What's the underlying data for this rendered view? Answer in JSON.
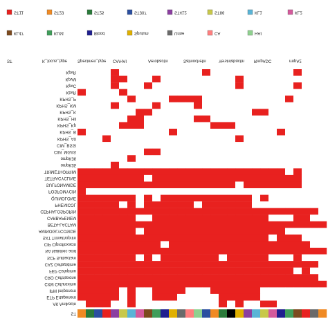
{
  "chart_data": {
    "type": "heatmap",
    "color": "#e8211f",
    "annotation_titles": [
      "ST",
      "K_locus_type",
      "Specimen_type",
      "CA/HAI",
      "Aerobactin",
      "Salmochelin",
      "Yersiniabactin",
      "RmpADC",
      "rmpA2"
    ],
    "legend": [
      {
        "name": "ST11",
        "color": "#e8211f"
      },
      {
        "name": "ST23",
        "color": "#f08a24"
      },
      {
        "name": "ST25",
        "color": "#2a7a3a"
      },
      {
        "name": "ST307",
        "color": "#2b4fa0"
      },
      {
        "name": "ST412",
        "color": "#8b3fa0"
      },
      {
        "name": "ST86",
        "color": "#c8c84a"
      },
      {
        "name": "KL1",
        "color": "#5ab4d6"
      },
      {
        "name": "KL2",
        "color": "#d45a9c"
      },
      {
        "name": "KL47",
        "color": "#7c4a1e"
      },
      {
        "name": "KL64",
        "color": "#3f9e5a"
      },
      {
        "name": "Blood",
        "color": "#1f1f8f"
      },
      {
        "name": "Sputum",
        "color": "#e0b000"
      },
      {
        "name": "Urine",
        "color": "#6a6a6a"
      },
      {
        "name": "CA",
        "color": "#ff7f7f"
      },
      {
        "name": "HAI",
        "color": "#8fd18f"
      }
    ],
    "rows": [
      "KpvR",
      "KpvM",
      "KpvC",
      "KbvR",
      "KPHS_P",
      "KPHS_KM",
      "KPHS_K",
      "KPHS_Hil",
      "KPHS_Kp",
      "KPHS_B",
      "KPHS_A0",
      "CIM_BSSI",
      "CIM_MGAS",
      "ompK36",
      "ompK35",
      "TRIMETHOPRIM",
      "TETRACYCLINE",
      "SULFONAMIDE",
      "FOSFOMYCIN",
      "QUINOLONE",
      "PHENICOL",
      "CEPHALOSPORIN",
      "CARBAPENEM",
      "BETA-LACTAM",
      "AMINOGLYCOSIDE",
      "SXT Trimethoprim",
      "CIP Ciprofloxacin",
      "NA Nalidixic acid",
      "SCF Sulbactam",
      "CAZ Ceftazidime",
      "FEP Cefepime",
      "CRO Ceftriaxone",
      "CXM Cefuroxime",
      "IPM Imipenem",
      "ETP Ertapenem",
      "AK Amikacin"
    ],
    "values": [
      [
        0,
        0,
        0,
        0,
        1,
        0,
        0,
        0,
        0,
        0,
        0,
        0,
        0,
        0,
        0,
        1,
        0,
        0,
        0,
        0,
        0,
        0,
        0,
        0,
        0,
        0,
        1,
        0,
        0,
        0
      ],
      [
        0,
        0,
        0,
        0,
        1,
        1,
        0,
        0,
        0,
        1,
        0,
        0,
        0,
        0,
        0,
        0,
        0,
        0,
        0,
        1,
        0,
        0,
        0,
        0,
        0,
        0,
        0,
        0,
        0,
        0
      ],
      [
        0,
        0,
        0,
        0,
        1,
        0,
        0,
        0,
        1,
        0,
        0,
        0,
        0,
        0,
        0,
        0,
        0,
        0,
        0,
        1,
        0,
        0,
        0,
        0,
        0,
        0,
        1,
        0,
        0,
        0
      ],
      [
        1,
        0,
        0,
        0,
        0,
        1,
        0,
        0,
        0,
        0,
        0,
        0,
        0,
        0,
        0,
        0,
        0,
        0,
        0,
        0,
        0,
        0,
        0,
        0,
        0,
        0,
        0,
        0,
        0,
        0
      ],
      [
        0,
        0,
        0,
        0,
        0,
        0,
        1,
        0,
        0,
        0,
        0,
        1,
        1,
        1,
        1,
        0,
        0,
        0,
        0,
        0,
        0,
        0,
        0,
        0,
        0,
        1,
        0,
        0,
        0,
        0
      ],
      [
        0,
        0,
        0,
        0,
        1,
        0,
        0,
        0,
        0,
        1,
        0,
        0,
        0,
        0,
        1,
        0,
        0,
        0,
        0,
        0,
        0,
        0,
        0,
        0,
        0,
        0,
        0,
        0,
        0,
        0
      ],
      [
        0,
        0,
        0,
        0,
        0,
        0,
        0,
        1,
        1,
        0,
        0,
        0,
        0,
        0,
        0,
        0,
        0,
        0,
        0,
        0,
        0,
        1,
        1,
        0,
        0,
        0,
        0,
        0,
        0,
        0
      ],
      [
        0,
        0,
        0,
        0,
        0,
        0,
        1,
        1,
        0,
        0,
        0,
        0,
        0,
        0,
        1,
        1,
        0,
        0,
        0,
        0,
        0,
        0,
        0,
        0,
        0,
        0,
        0,
        0,
        0,
        0
      ],
      [
        0,
        0,
        0,
        0,
        0,
        1,
        1,
        1,
        0,
        0,
        0,
        0,
        0,
        0,
        0,
        0,
        1,
        1,
        1,
        0,
        0,
        0,
        0,
        0,
        0,
        0,
        0,
        0,
        0,
        0
      ],
      [
        1,
        0,
        0,
        0,
        0,
        0,
        0,
        0,
        0,
        0,
        0,
        1,
        0,
        0,
        0,
        0,
        0,
        0,
        0,
        0,
        0,
        0,
        0,
        0,
        1,
        0,
        0,
        0,
        0,
        0
      ],
      [
        0,
        0,
        0,
        1,
        0,
        0,
        0,
        0,
        0,
        0,
        0,
        0,
        0,
        0,
        0,
        0,
        0,
        0,
        0,
        1,
        0,
        0,
        0,
        0,
        0,
        0,
        0,
        0,
        0,
        0
      ],
      [
        0,
        0,
        0,
        0,
        0,
        0,
        0,
        0,
        0,
        0,
        0,
        0,
        0,
        0,
        0,
        0,
        0,
        0,
        0,
        0,
        0,
        0,
        0,
        0,
        0,
        0,
        0,
        0,
        0,
        0
      ],
      [
        0,
        0,
        0,
        0,
        0,
        0,
        0,
        0,
        1,
        1,
        0,
        0,
        0,
        0,
        0,
        0,
        0,
        0,
        0,
        0,
        0,
        0,
        0,
        0,
        0,
        0,
        0,
        0,
        0,
        0
      ],
      [
        0,
        0,
        0,
        0,
        0,
        0,
        1,
        0,
        0,
        0,
        0,
        0,
        0,
        0,
        0,
        0,
        0,
        0,
        0,
        0,
        0,
        0,
        0,
        0,
        0,
        0,
        0,
        0,
        0,
        0
      ],
      [
        0,
        0,
        0,
        0,
        1,
        0,
        0,
        0,
        0,
        0,
        0,
        0,
        0,
        0,
        0,
        0,
        0,
        0,
        0,
        0,
        0,
        0,
        0,
        0,
        0,
        0,
        0,
        0,
        0,
        0
      ],
      [
        1,
        1,
        1,
        1,
        1,
        1,
        1,
        1,
        1,
        1,
        1,
        1,
        1,
        1,
        1,
        1,
        1,
        1,
        1,
        1,
        1,
        1,
        1,
        1,
        1,
        0,
        1,
        0,
        0,
        0
      ],
      [
        1,
        1,
        1,
        1,
        1,
        1,
        1,
        1,
        0,
        1,
        1,
        1,
        1,
        1,
        1,
        1,
        1,
        1,
        1,
        1,
        1,
        1,
        1,
        1,
        1,
        1,
        1,
        0,
        0,
        0
      ],
      [
        1,
        1,
        1,
        1,
        1,
        1,
        1,
        1,
        1,
        1,
        1,
        1,
        1,
        1,
        1,
        1,
        1,
        1,
        1,
        0,
        1,
        1,
        1,
        1,
        1,
        1,
        1,
        0,
        0,
        0
      ],
      [
        1,
        0,
        0,
        0,
        0,
        0,
        0,
        0,
        0,
        0,
        0,
        0,
        0,
        0,
        0,
        0,
        0,
        0,
        0,
        0,
        0,
        0,
        0,
        0,
        0,
        0,
        0,
        0,
        0,
        0
      ],
      [
        1,
        1,
        1,
        1,
        1,
        1,
        1,
        0,
        1,
        0,
        1,
        1,
        1,
        1,
        1,
        1,
        1,
        1,
        1,
        1,
        1,
        0,
        1,
        0,
        0,
        0,
        0,
        0,
        0,
        0
      ],
      [
        1,
        1,
        1,
        1,
        1,
        0,
        1,
        0,
        1,
        1,
        1,
        1,
        1,
        1,
        0,
        1,
        1,
        1,
        1,
        1,
        1,
        0,
        0,
        0,
        0,
        0,
        0,
        0,
        0,
        0
      ],
      [
        1,
        1,
        1,
        1,
        1,
        1,
        1,
        1,
        1,
        1,
        1,
        1,
        1,
        1,
        1,
        1,
        1,
        1,
        1,
        1,
        1,
        1,
        1,
        1,
        1,
        1,
        1,
        1,
        1,
        0
      ],
      [
        1,
        1,
        1,
        1,
        1,
        1,
        1,
        0,
        0,
        1,
        1,
        1,
        1,
        1,
        1,
        1,
        1,
        1,
        1,
        1,
        1,
        1,
        1,
        0,
        0,
        0,
        1,
        1,
        0,
        0
      ],
      [
        1,
        1,
        1,
        1,
        1,
        1,
        1,
        1,
        1,
        1,
        1,
        1,
        1,
        1,
        1,
        1,
        1,
        1,
        1,
        1,
        1,
        1,
        1,
        1,
        1,
        1,
        1,
        1,
        1,
        1
      ],
      [
        1,
        1,
        1,
        1,
        1,
        1,
        1,
        0,
        1,
        1,
        1,
        1,
        1,
        1,
        1,
        1,
        1,
        1,
        1,
        1,
        1,
        1,
        1,
        1,
        1,
        0,
        0,
        0,
        0,
        0
      ],
      [
        1,
        1,
        1,
        1,
        1,
        1,
        1,
        1,
        1,
        1,
        1,
        1,
        1,
        1,
        1,
        1,
        1,
        1,
        1,
        1,
        1,
        1,
        1,
        0,
        1,
        1,
        1,
        0,
        0,
        0
      ],
      [
        1,
        1,
        1,
        1,
        1,
        1,
        1,
        1,
        1,
        1,
        0,
        1,
        1,
        1,
        1,
        1,
        1,
        1,
        1,
        1,
        1,
        1,
        1,
        1,
        1,
        1,
        1,
        1,
        0,
        0
      ],
      [
        1,
        1,
        1,
        1,
        1,
        1,
        1,
        1,
        1,
        1,
        1,
        1,
        1,
        1,
        1,
        1,
        1,
        1,
        1,
        1,
        1,
        1,
        1,
        1,
        1,
        1,
        1,
        1,
        1,
        1
      ],
      [
        1,
        1,
        1,
        1,
        1,
        1,
        1,
        0,
        1,
        0,
        1,
        1,
        1,
        1,
        1,
        1,
        1,
        0,
        1,
        1,
        1,
        1,
        1,
        0,
        0,
        0,
        1,
        0,
        0,
        0
      ],
      [
        1,
        1,
        1,
        1,
        1,
        1,
        1,
        1,
        1,
        1,
        1,
        1,
        1,
        1,
        1,
        1,
        1,
        1,
        1,
        1,
        1,
        1,
        1,
        1,
        1,
        1,
        1,
        1,
        1,
        0
      ],
      [
        1,
        1,
        1,
        1,
        1,
        1,
        1,
        1,
        1,
        1,
        1,
        1,
        1,
        1,
        1,
        1,
        1,
        1,
        1,
        1,
        1,
        1,
        1,
        1,
        1,
        1,
        0,
        1,
        0,
        0
      ],
      [
        1,
        1,
        1,
        1,
        1,
        1,
        1,
        1,
        1,
        1,
        1,
        1,
        1,
        1,
        1,
        1,
        1,
        1,
        1,
        1,
        1,
        1,
        1,
        1,
        1,
        1,
        1,
        1,
        1,
        0
      ],
      [
        1,
        1,
        1,
        1,
        1,
        1,
        1,
        1,
        1,
        1,
        1,
        1,
        1,
        1,
        1,
        1,
        1,
        1,
        1,
        1,
        1,
        1,
        1,
        1,
        1,
        1,
        1,
        1,
        1,
        1
      ],
      [
        1,
        1,
        1,
        1,
        1,
        0,
        1,
        0,
        0,
        1,
        1,
        1,
        1,
        0,
        0,
        0,
        1,
        1,
        1,
        1,
        1,
        1,
        0,
        0,
        0,
        0,
        0,
        0,
        0,
        0
      ],
      [
        1,
        1,
        1,
        1,
        1,
        0,
        1,
        0,
        0,
        1,
        1,
        1,
        0,
        0,
        0,
        0,
        0,
        1,
        1,
        1,
        1,
        1,
        0,
        0,
        0,
        0,
        0,
        0,
        0,
        0
      ],
      [
        0,
        1,
        1,
        1,
        0,
        0,
        1,
        0,
        0,
        0,
        0,
        0,
        0,
        0,
        0,
        0,
        0,
        1,
        0,
        1,
        0,
        0,
        1,
        1,
        0,
        0,
        0,
        0,
        0,
        0
      ]
    ],
    "strip": {
      "name": "ST",
      "colors": [
        "#f08a24",
        "#2a7a3a",
        "#2b4fa0",
        "#e8211f",
        "#8b3fa0",
        "#c8c84a",
        "#5ab4d6",
        "#d45a9c",
        "#7c4a1e",
        "#3f9e5a",
        "#1f1f8f",
        "#e0b000",
        "#6a6a6a",
        "#ff7f7f",
        "#8fd18f",
        "#2b4fa0",
        "#f08a24",
        "#2a7a3a",
        "#000000",
        "#e0b000",
        "#8b3fa0",
        "#5ab4d6",
        "#c8c84a",
        "#d45a9c",
        "#1f1f8f",
        "#3f9e5a",
        "#7c4a1e",
        "#e8211f",
        "#6a6a6a",
        "#f08a24"
      ]
    }
  }
}
